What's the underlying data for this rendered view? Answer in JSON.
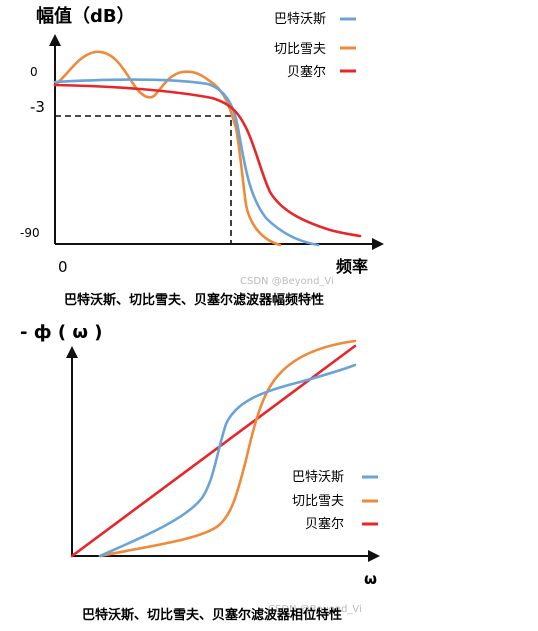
{
  "colors": {
    "butterworth": "#6aa3d8",
    "chebyshev": "#ef8a3a",
    "bessel": "#e8262a",
    "axis": "#111111"
  },
  "top": {
    "y_title": "幅值（dB）",
    "tick_0": "0",
    "tick_minus3": "-3",
    "tick_minus90": "-90",
    "x_origin": "0",
    "x_title": "频率",
    "legend": [
      "巴特沃斯",
      "切比雪夫",
      "贝塞尔"
    ],
    "watermark": "CSDN @Beyond_Vi",
    "caption": "巴特沃斯、切比雪夫、贝塞尔滤波器幅频特性"
  },
  "bottom": {
    "y_title": "- ф ( ω )",
    "x_title": "ω",
    "legend": [
      "巴特沃斯",
      "切比雪夫",
      "贝塞尔"
    ],
    "watermark": "CSDN @Beyond_Vi",
    "caption": "巴特沃斯、切比雪夫、贝塞尔滤波器相位特性"
  }
}
